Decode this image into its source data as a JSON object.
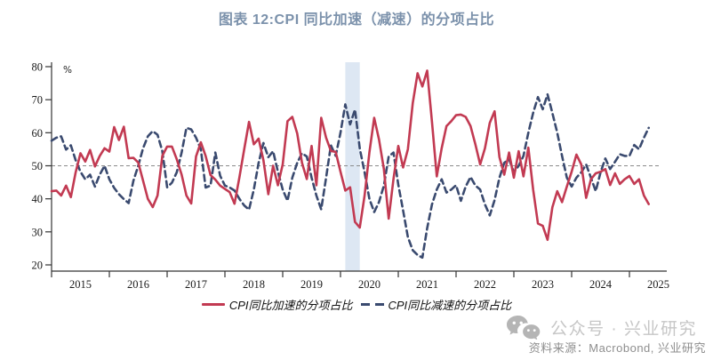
{
  "title": {
    "text": "图表 12:CPI 同比加速（减速）的分项占比"
  },
  "chart_data": {
    "type": "line",
    "title": "图表 12:CPI 同比加速（减速）的分项占比",
    "xlabel": "",
    "ylabel": "%",
    "ylim": [
      20,
      80
    ],
    "yticks": [
      20,
      30,
      40,
      50,
      60,
      70,
      80
    ],
    "xtick_labels": [
      "2015",
      "2016",
      "2017",
      "2018",
      "2019",
      "2020",
      "2021",
      "2022",
      "2023",
      "2024",
      "2025"
    ],
    "x_start": "2015-01",
    "x_end": "2025-05",
    "frequency": "monthly",
    "grid": "off",
    "reference_line": 50,
    "shaded_band": {
      "from": "2020-02",
      "to": "2020-04",
      "color": "#dde7f3"
    },
    "legend_position": "bottom",
    "series": [
      {
        "name": "CPI同比加速的分项占比",
        "key": "accelerating",
        "color": "#c23a52",
        "style": "solid",
        "values": [
          42.3,
          42.5,
          41.0,
          44.0,
          40.5,
          48.0,
          53.8,
          51.3,
          54.8,
          49.8,
          53.0,
          55.3,
          54.3,
          61.7,
          57.8,
          61.8,
          52.3,
          52.4,
          51.0,
          45.5,
          40.0,
          37.5,
          41.0,
          53.0,
          55.8,
          55.8,
          52.0,
          47.3,
          41.0,
          38.6,
          52.8,
          57.1,
          53.0,
          47.2,
          45.8,
          44.0,
          43.0,
          42.0,
          38.5,
          46.5,
          55.0,
          63.3,
          56.5,
          58.2,
          51.7,
          41.4,
          50.0,
          44.1,
          50.4,
          63.5,
          64.8,
          59.8,
          50.9,
          46.0,
          56.0,
          44.1,
          64.5,
          58.5,
          54.5,
          54.2,
          48.2,
          42.5,
          43.5,
          33.0,
          31.3,
          41.0,
          54.0,
          64.5,
          58.0,
          49.0,
          34.0,
          46.0,
          56.0,
          49.5,
          55.0,
          69.0,
          78.0,
          74.0,
          78.8,
          63.3,
          46.8,
          55.3,
          62.0,
          63.5,
          65.3,
          65.5,
          64.8,
          62.0,
          56.5,
          50.4,
          55.3,
          63.0,
          66.5,
          52.6,
          47.3,
          54.0,
          46.4,
          54.4,
          46.8,
          55.5,
          42.8,
          32.5,
          31.8,
          27.6,
          37.4,
          42.3,
          39.0,
          43.7,
          48.2,
          53.4,
          50.4,
          40.3,
          45.9,
          47.7,
          48.2,
          49.0,
          44.2,
          47.7,
          44.5,
          45.9,
          46.9,
          44.5,
          45.9,
          41.0,
          38.4
        ]
      },
      {
        "name": "CPI同比减速的分项占比",
        "key": "decelerating",
        "color": "#3a4a6f",
        "style": "dashed",
        "values": [
          57.6,
          58.5,
          58.9,
          54.9,
          56.2,
          51.7,
          48.2,
          45.9,
          47.3,
          43.7,
          47.3,
          50.0,
          45.9,
          43.3,
          41.4,
          39.9,
          38.7,
          45.5,
          50.0,
          55.3,
          58.9,
          60.5,
          59.4,
          54.4,
          43.5,
          44.9,
          48.0,
          54.0,
          61.5,
          61.0,
          58.5,
          55.0,
          43.4,
          44.0,
          54.0,
          47.0,
          44.0,
          43.4,
          42.5,
          40.0,
          38.0,
          36.7,
          42.8,
          50.9,
          56.9,
          52.6,
          54.4,
          48.2,
          42.8,
          39.4,
          46.4,
          50.9,
          53.8,
          52.8,
          46.4,
          41.0,
          36.8,
          46.4,
          56.2,
          53.0,
          60.0,
          68.6,
          62.5,
          67.0,
          55.2,
          48.0,
          40.0,
          36.0,
          39.0,
          44.0,
          52.8,
          54.0,
          44.3,
          36.5,
          28.4,
          24.4,
          23.0,
          22.2,
          31.1,
          38.3,
          42.8,
          45.9,
          41.9,
          42.8,
          44.1,
          39.4,
          43.7,
          46.6,
          44.0,
          42.8,
          38.3,
          35.0,
          39.6,
          46.4,
          50.9,
          52.0,
          48.0,
          50.0,
          53.0,
          60.0,
          66.0,
          70.8,
          67.1,
          71.6,
          66.0,
          60.0,
          53.0,
          46.4,
          43.7,
          46.4,
          48.0,
          50.4,
          46.4,
          42.3,
          48.0,
          52.2,
          49.0,
          51.2,
          53.5,
          53.0,
          53.0,
          56.3,
          55.0,
          58.5,
          61.5
        ]
      }
    ]
  },
  "footer": {
    "watermark": "公众号 · 兴业研究",
    "source": "资料来源：Macrobond, 兴业研究"
  },
  "colors": {
    "title": "#7b91ab",
    "accent_red": "#c23a52",
    "accent_navy": "#3a4a6f",
    "band": "#dde7f3",
    "reference_line": "#8a8a8a",
    "watermark": "#c6c6c6",
    "source_text": "#8e8e8e"
  }
}
